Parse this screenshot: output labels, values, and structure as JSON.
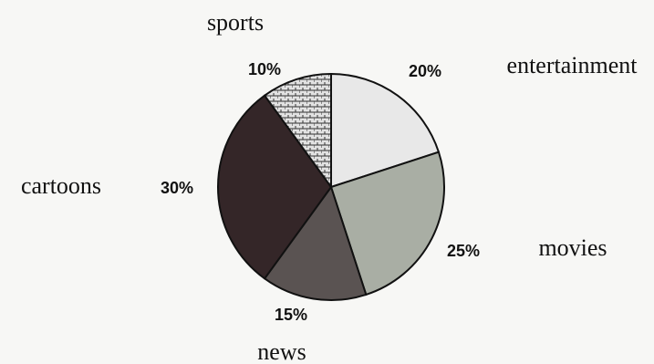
{
  "chart_data": {
    "type": "pie",
    "title": "",
    "slices": [
      {
        "label": "entertainment",
        "value": 20,
        "value_label": "20%",
        "color": "#e8e8e8",
        "pattern": "none"
      },
      {
        "label": "movies",
        "value": 25,
        "value_label": "25%",
        "color": "#a9aea4",
        "pattern": "none"
      },
      {
        "label": "news",
        "value": 15,
        "value_label": "15%",
        "color": "#5a5352",
        "pattern": "none"
      },
      {
        "label": "cartoons",
        "value": 30,
        "value_label": "30%",
        "color": "#342628",
        "pattern": "none"
      },
      {
        "label": "sports",
        "value": 10,
        "value_label": "10%",
        "color": "#e2e2e2",
        "pattern": "brick"
      }
    ],
    "start": "12 o'clock",
    "direction": "clockwise",
    "legend": "none"
  }
}
